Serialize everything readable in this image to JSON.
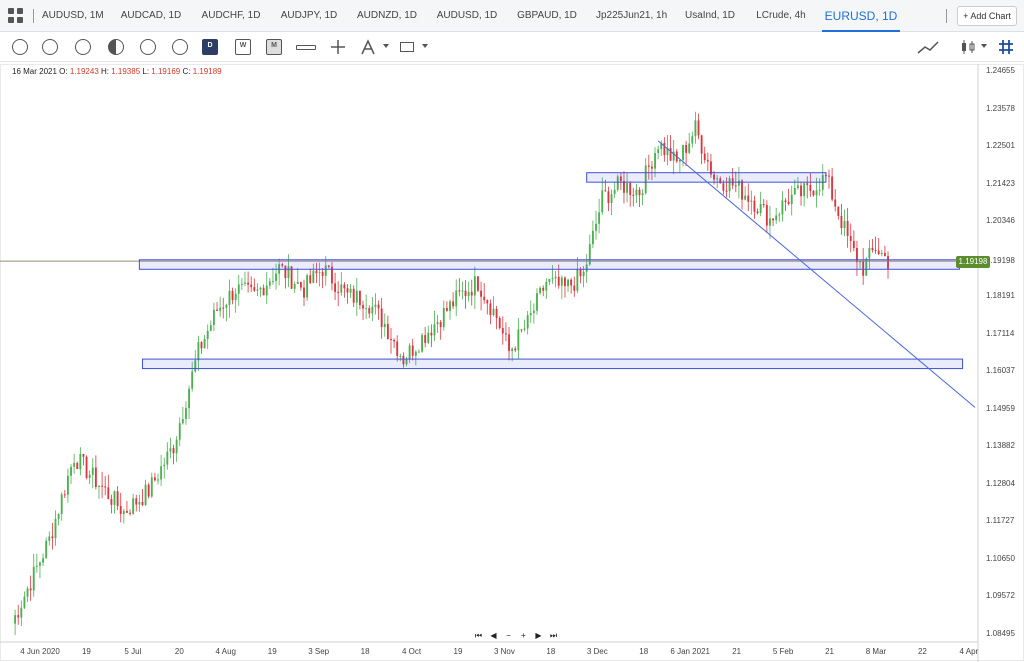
{
  "tabs": [
    {
      "label": "AUDUSD, 1M",
      "active": false
    },
    {
      "label": "AUDCAD, 1D",
      "active": false
    },
    {
      "label": "AUDCHF, 1D",
      "active": false
    },
    {
      "label": "AUDJPY, 1D",
      "active": false
    },
    {
      "label": "AUDNZD, 1D",
      "active": false
    },
    {
      "label": "AUDUSD, 1D",
      "active": false
    },
    {
      "label": "GBPAUD, 1D",
      "active": false
    },
    {
      "label": "Jp225Jun21, 1h",
      "active": false
    },
    {
      "label": "UsaInd, 1D",
      "active": false
    },
    {
      "label": "LCrude, 4h",
      "active": false
    },
    {
      "label": "EURUSD, 1D",
      "active": true
    }
  ],
  "add_chart_label": "+ Add Chart",
  "toolbar_tools": [
    "clock-icon",
    "clock-icon",
    "clock-icon",
    "half-circle-icon",
    "timeframe-icon",
    "timeframe-icon",
    "calendar-d-icon",
    "calendar-w-icon",
    "calendar-m-icon",
    "measure-icon",
    "crosshair-icon",
    "draw-icon",
    "rectangle-icon",
    "line-chart-icon",
    "candles-icon",
    "grid-icon"
  ],
  "ohlc": {
    "date": "16 Mar 2021",
    "o_label": "O:",
    "o": "1.19243",
    "h_label": "H:",
    "h": "1.19385",
    "l_label": "L:",
    "l": "1.19169",
    "c_label": "C:",
    "c": "1.19189"
  },
  "current_price": "1.19198",
  "navigation": [
    "⏮",
    "◀",
    "−",
    "+",
    "▶",
    "⏭"
  ],
  "colors": {
    "up": "#4caf50",
    "down": "#d9363e",
    "accent": "#1f6fd6",
    "box": "#3f51d8",
    "price_line": "#9c8b6e",
    "badge": "#5b8c2e"
  },
  "chart_data": {
    "type": "candlestick",
    "symbol": "EURUSD",
    "timeframe": "1D",
    "y_ticks": [
      "1.24655",
      "1.23578",
      "1.22501",
      "1.21423",
      "1.20346",
      "1.19198",
      "1.18191",
      "1.17114",
      "1.16037",
      "1.14959",
      "1.13882",
      "1.12804",
      "1.11727",
      "1.10650",
      "1.09572",
      "1.08495"
    ],
    "x_ticks": [
      "4 Jun 2020",
      "19",
      "5 Jul",
      "20",
      "4 Aug",
      "19",
      "3 Sep",
      "18",
      "4 Oct",
      "19",
      "3 Nov",
      "18",
      "3 Dec",
      "18",
      "6 Jan 2021",
      "21",
      "5 Feb",
      "21",
      "8 Mar",
      "22",
      "4 Apr"
    ],
    "ylim": [
      1.08495,
      1.24655
    ],
    "close_path": [
      [
        0,
        1.088
      ],
      [
        12,
        1.112
      ],
      [
        20,
        1.136
      ],
      [
        28,
        1.128
      ],
      [
        36,
        1.12
      ],
      [
        44,
        1.126
      ],
      [
        52,
        1.139
      ],
      [
        60,
        1.166
      ],
      [
        66,
        1.178
      ],
      [
        72,
        1.184
      ],
      [
        78,
        1.182
      ],
      [
        86,
        1.19
      ],
      [
        94,
        1.184
      ],
      [
        100,
        1.19
      ],
      [
        108,
        1.182
      ],
      [
        114,
        1.181
      ],
      [
        120,
        1.174
      ],
      [
        126,
        1.164
      ],
      [
        132,
        1.17
      ],
      [
        138,
        1.176
      ],
      [
        144,
        1.182
      ],
      [
        150,
        1.186
      ],
      [
        156,
        1.176
      ],
      [
        160,
        1.166
      ],
      [
        166,
        1.174
      ],
      [
        172,
        1.186
      ],
      [
        178,
        1.184
      ],
      [
        184,
        1.188
      ],
      [
        190,
        1.21
      ],
      [
        196,
        1.214
      ],
      [
        202,
        1.212
      ],
      [
        208,
        1.226
      ],
      [
        214,
        1.22
      ],
      [
        220,
        1.23
      ],
      [
        226,
        1.216
      ],
      [
        232,
        1.214
      ],
      [
        238,
        1.21
      ],
      [
        244,
        1.204
      ],
      [
        250,
        1.21
      ],
      [
        256,
        1.212
      ],
      [
        262,
        1.216
      ],
      [
        266,
        1.206
      ],
      [
        270,
        1.196
      ],
      [
        274,
        1.19
      ],
      [
        278,
        1.196
      ],
      [
        282,
        1.192
      ]
    ],
    "horizontal_zones": [
      {
        "from": 1.1905,
        "to": 1.1915,
        "color": "blue"
      },
      {
        "from": 1.162,
        "to": 1.163,
        "color": "blue"
      },
      {
        "from": 1.2155,
        "to": 1.2165,
        "color": "blue"
      }
    ],
    "trendline": {
      "start": [
        208,
        1.2265
      ],
      "end": [
        310,
        1.15
      ]
    },
    "current_price_line": 1.19198
  }
}
